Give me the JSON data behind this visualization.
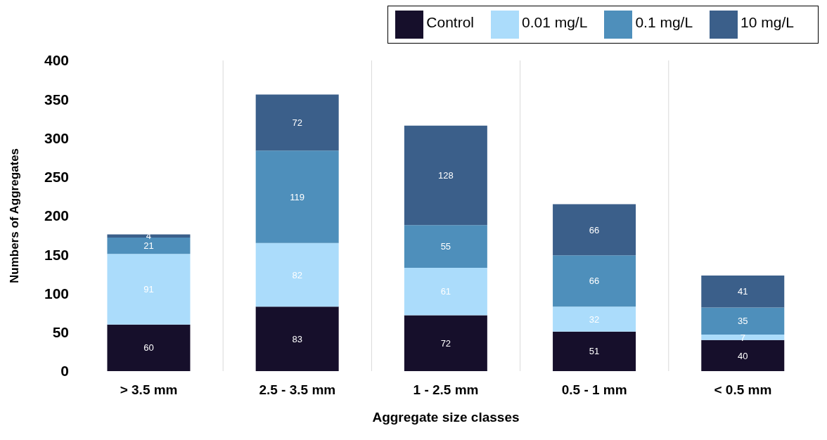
{
  "chart_data": {
    "type": "bar",
    "stacked": true,
    "xlabel": "Aggregate size classes",
    "ylabel": "Numbers of Aggregates",
    "categories": [
      "> 3.5 mm",
      "2.5 - 3.5 mm",
      "1 - 2.5 mm",
      "0.5 - 1 mm",
      "< 0.5 mm"
    ],
    "series": [
      {
        "name": "Control",
        "color": "#160f2b",
        "values": [
          60,
          83,
          72,
          51,
          40
        ]
      },
      {
        "name": "0.01 mg/L",
        "color": "#abdcfb",
        "values": [
          91,
          82,
          61,
          32,
          7
        ]
      },
      {
        "name": "0.1 mg/L",
        "color": "#4e8fbb",
        "values": [
          21,
          119,
          55,
          66,
          35
        ]
      },
      {
        "name": "10 mg/L",
        "color": "#3b5f8a",
        "values": [
          4,
          72,
          128,
          66,
          41
        ]
      }
    ],
    "ylim": [
      0,
      400
    ],
    "yticks": [
      0,
      50,
      100,
      150,
      200,
      250,
      300,
      350,
      400
    ],
    "grid": "x",
    "legend": "top right",
    "data_labels": true
  }
}
